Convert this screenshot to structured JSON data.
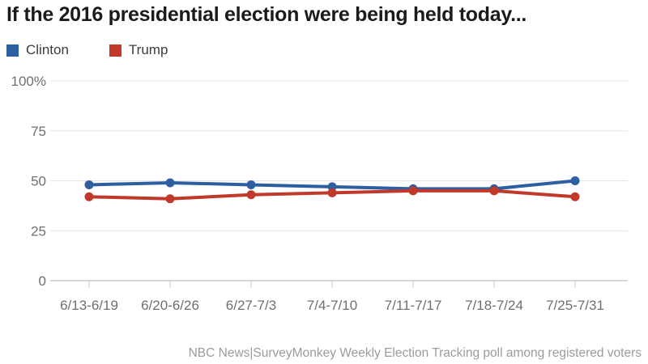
{
  "chart_data": {
    "type": "line",
    "title": "If the 2016 presidential election were being held today...",
    "categories": [
      "6/13-6/19",
      "6/20-6/26",
      "6/27-7/3",
      "7/4-7/10",
      "7/11-7/17",
      "7/18-7/24",
      "7/25-7/31"
    ],
    "series": [
      {
        "name": "Clinton",
        "color": "#2e5fa3",
        "values": [
          48,
          49,
          48,
          47,
          46,
          46,
          50
        ]
      },
      {
        "name": "Trump",
        "color": "#c0392b",
        "values": [
          42,
          41,
          43,
          44,
          45,
          45,
          42
        ]
      }
    ],
    "xlabel": "",
    "ylabel": "",
    "ylim": [
      0,
      100
    ],
    "yticks": [
      0,
      25,
      50,
      75,
      100
    ],
    "ytick_labels": [
      "0",
      "25",
      "50",
      "75",
      "100%"
    ],
    "grid": "horizontal",
    "legend_position": "top-left",
    "source_note": "NBC News|SurveyMonkey Weekly Election Tracking poll among registered voters"
  }
}
